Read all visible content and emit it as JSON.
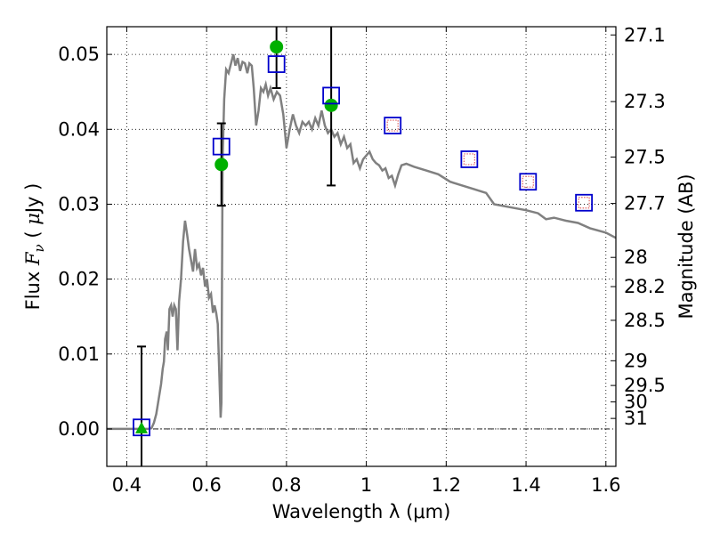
{
  "chart_data": {
    "type": "scatter",
    "xlabel": "Wavelength  λ (μm)",
    "ylabel": "Flux  F_ν  ( μJy )",
    "ylabel_parts": [
      "Flux ",
      "F",
      "ν",
      "  ( ",
      "μ",
      "Jy )"
    ],
    "y2label": "Magnitude (AB)",
    "xlim": [
      0.35,
      1.625
    ],
    "ylim": [
      -0.005,
      0.0537
    ],
    "grid": true,
    "x_ticks": [
      0.4,
      0.6,
      0.8,
      1.0,
      1.2,
      1.4,
      1.6
    ],
    "x_tick_labels": [
      "0.4",
      "0.6",
      "0.8",
      "1",
      "1.2",
      "1.4",
      "1.6"
    ],
    "y_ticks": [
      0.0,
      0.01,
      0.02,
      0.03,
      0.04,
      0.05
    ],
    "y_tick_labels": [
      "0.00",
      "0.01",
      "0.02",
      "0.03",
      "0.04",
      "0.05"
    ],
    "right_axis": {
      "ticks": [
        {
          "label": "27.1",
          "flux": 0.0526
        },
        {
          "label": "27.3",
          "flux": 0.0437
        },
        {
          "label": "27.5",
          "flux": 0.0363
        },
        {
          "label": "27.7",
          "flux": 0.0301
        },
        {
          "label": "28",
          "flux": 0.0229
        },
        {
          "label": "28.2",
          "flux": 0.019
        },
        {
          "label": "28.5",
          "flux": 0.0145
        },
        {
          "label": "29",
          "flux": 0.0091
        },
        {
          "label": "29.5",
          "flux": 0.0058
        },
        {
          "label": "30",
          "flux": 0.0036
        },
        {
          "label": "31",
          "flux": 0.0014
        }
      ]
    },
    "sed_model": {
      "color": "#808080",
      "points": [
        [
          0.35,
          0.0
        ],
        [
          0.455,
          0.0
        ],
        [
          0.462,
          0.0001
        ],
        [
          0.468,
          0.0008
        ],
        [
          0.474,
          0.002
        ],
        [
          0.48,
          0.004
        ],
        [
          0.486,
          0.006
        ],
        [
          0.49,
          0.008
        ],
        [
          0.493,
          0.009
        ],
        [
          0.496,
          0.012
        ],
        [
          0.5,
          0.013
        ],
        [
          0.503,
          0.0105
        ],
        [
          0.507,
          0.016
        ],
        [
          0.511,
          0.0165
        ],
        [
          0.515,
          0.015
        ],
        [
          0.519,
          0.0165
        ],
        [
          0.523,
          0.016
        ],
        [
          0.527,
          0.0105
        ],
        [
          0.531,
          0.017
        ],
        [
          0.536,
          0.02
        ],
        [
          0.541,
          0.025
        ],
        [
          0.546,
          0.0278
        ],
        [
          0.551,
          0.026
        ],
        [
          0.556,
          0.024
        ],
        [
          0.561,
          0.0225
        ],
        [
          0.566,
          0.021
        ],
        [
          0.571,
          0.024
        ],
        [
          0.576,
          0.0215
        ],
        [
          0.581,
          0.022
        ],
        [
          0.586,
          0.0205
        ],
        [
          0.591,
          0.0215
        ],
        [
          0.596,
          0.019
        ],
        [
          0.601,
          0.02
        ],
        [
          0.606,
          0.0175
        ],
        [
          0.611,
          0.018
        ],
        [
          0.616,
          0.0155
        ],
        [
          0.62,
          0.0165
        ],
        [
          0.624,
          0.0155
        ],
        [
          0.628,
          0.014
        ],
        [
          0.632,
          0.007
        ],
        [
          0.635,
          0.0015
        ],
        [
          0.637,
          0.0035
        ],
        [
          0.64,
          0.036
        ],
        [
          0.644,
          0.044
        ],
        [
          0.649,
          0.048
        ],
        [
          0.655,
          0.0475
        ],
        [
          0.662,
          0.049
        ],
        [
          0.667,
          0.05
        ],
        [
          0.672,
          0.0485
        ],
        [
          0.678,
          0.0495
        ],
        [
          0.684,
          0.0478
        ],
        [
          0.69,
          0.049
        ],
        [
          0.696,
          0.0488
        ],
        [
          0.702,
          0.0475
        ],
        [
          0.707,
          0.0488
        ],
        [
          0.713,
          0.0485
        ],
        [
          0.718,
          0.0455
        ],
        [
          0.724,
          0.0405
        ],
        [
          0.73,
          0.0425
        ],
        [
          0.736,
          0.0455
        ],
        [
          0.742,
          0.045
        ],
        [
          0.748,
          0.046
        ],
        [
          0.754,
          0.0445
        ],
        [
          0.76,
          0.0455
        ],
        [
          0.768,
          0.044
        ],
        [
          0.776,
          0.045
        ],
        [
          0.784,
          0.0445
        ],
        [
          0.792,
          0.042
        ],
        [
          0.8,
          0.0375
        ],
        [
          0.808,
          0.04
        ],
        [
          0.816,
          0.042
        ],
        [
          0.824,
          0.0405
        ],
        [
          0.832,
          0.0395
        ],
        [
          0.84,
          0.041
        ],
        [
          0.848,
          0.0405
        ],
        [
          0.856,
          0.041
        ],
        [
          0.864,
          0.04
        ],
        [
          0.872,
          0.0415
        ],
        [
          0.88,
          0.0405
        ],
        [
          0.888,
          0.0425
        ],
        [
          0.896,
          0.0405
        ],
        [
          0.904,
          0.0395
        ],
        [
          0.912,
          0.04
        ],
        [
          0.92,
          0.039
        ],
        [
          0.928,
          0.0395
        ],
        [
          0.936,
          0.038
        ],
        [
          0.944,
          0.039
        ],
        [
          0.952,
          0.0375
        ],
        [
          0.96,
          0.038
        ],
        [
          0.968,
          0.0355
        ],
        [
          0.976,
          0.036
        ],
        [
          0.984,
          0.0348
        ],
        [
          0.992,
          0.036
        ],
        [
          1.0,
          0.0365
        ],
        [
          1.008,
          0.037
        ],
        [
          1.016,
          0.036
        ],
        [
          1.024,
          0.0355
        ],
        [
          1.032,
          0.0352
        ],
        [
          1.04,
          0.0345
        ],
        [
          1.048,
          0.0348
        ],
        [
          1.056,
          0.0335
        ],
        [
          1.064,
          0.0338
        ],
        [
          1.072,
          0.0325
        ],
        [
          1.08,
          0.034
        ],
        [
          1.088,
          0.0352
        ],
        [
          1.1,
          0.0354
        ],
        [
          1.12,
          0.035
        ],
        [
          1.15,
          0.0345
        ],
        [
          1.18,
          0.034
        ],
        [
          1.21,
          0.033
        ],
        [
          1.24,
          0.0325
        ],
        [
          1.27,
          0.032
        ],
        [
          1.3,
          0.0315
        ],
        [
          1.32,
          0.03
        ],
        [
          1.34,
          0.0298
        ],
        [
          1.37,
          0.0295
        ],
        [
          1.4,
          0.0292
        ],
        [
          1.43,
          0.0288
        ],
        [
          1.45,
          0.028
        ],
        [
          1.47,
          0.0282
        ],
        [
          1.5,
          0.0278
        ],
        [
          1.53,
          0.0275
        ],
        [
          1.56,
          0.0268
        ],
        [
          1.6,
          0.0262
        ],
        [
          1.625,
          0.0255
        ]
      ]
    },
    "observed": {
      "color": "#00b000",
      "points": [
        {
          "x": 0.437,
          "y": 0.0,
          "yerr": 0.011,
          "marker": "triangle"
        },
        {
          "x": 0.637,
          "y": 0.0353,
          "yerr": 0.0055,
          "marker": "circle"
        },
        {
          "x": 0.775,
          "y": 0.051,
          "yerr": 0.0055,
          "marker": "circle"
        },
        {
          "x": 0.912,
          "y": 0.0432,
          "yerr": 0.0107,
          "marker": "circle"
        }
      ]
    },
    "model_photometry": {
      "color": "#0000cc",
      "points": [
        {
          "x": 0.437,
          "y": 0.0002
        },
        {
          "x": 0.637,
          "y": 0.0377
        },
        {
          "x": 0.775,
          "y": 0.0487
        },
        {
          "x": 0.912,
          "y": 0.0445
        },
        {
          "x": 1.066,
          "y": 0.0405
        },
        {
          "x": 1.258,
          "y": 0.036
        },
        {
          "x": 1.405,
          "y": 0.033
        },
        {
          "x": 1.545,
          "y": 0.0302
        }
      ]
    },
    "upper_limit_inner": {
      "color": "#e06060",
      "points": [
        {
          "x": 1.066,
          "y": 0.0405
        },
        {
          "x": 1.258,
          "y": 0.036
        },
        {
          "x": 1.405,
          "y": 0.033
        },
        {
          "x": 1.545,
          "y": 0.0302
        }
      ]
    }
  }
}
